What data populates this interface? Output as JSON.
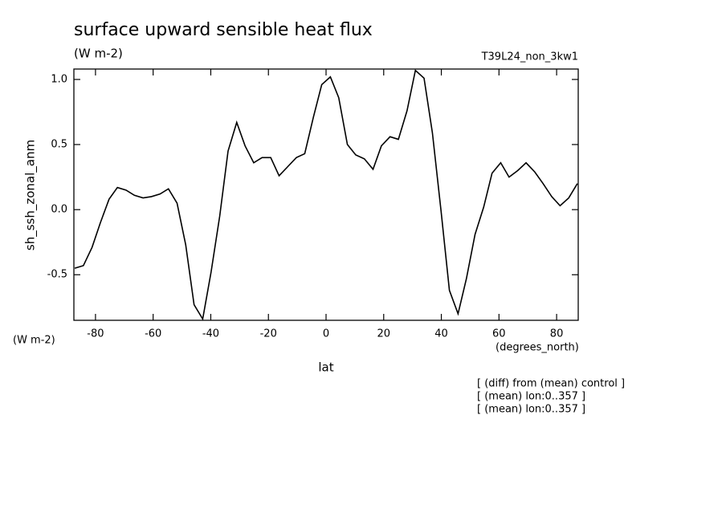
{
  "chart_data": {
    "type": "line",
    "title": "surface upward sensible heat flux",
    "subtitle": "(W m-2)",
    "experiment": "T39L24_non_3kw1",
    "y_label": "sh_ssh_zonal_anm",
    "y_units": "(W m-2)",
    "x_label": "lat",
    "x_units": "(degrees_north)",
    "notes": [
      "[ (diff) from (mean) control ]",
      "[ (mean) lon:0..357 ]",
      "[ (mean) lon:0..357 ]"
    ],
    "xlim": [
      -87.5,
      87.5
    ],
    "xticks": [
      -80,
      -60,
      -40,
      -20,
      0,
      20,
      40,
      60,
      80
    ],
    "ylim": [
      -0.85,
      1.08
    ],
    "yticks": [
      -0.5,
      {
        "value": 0,
        "label": "0.0"
      },
      0.5,
      {
        "value": 1,
        "label": "1.0"
      }
    ],
    "x": [
      -87.2,
      -84.2,
      -81.2,
      -78.3,
      -75.3,
      -72.4,
      -69.4,
      -66.5,
      -63.5,
      -60.6,
      -57.6,
      -54.7,
      -51.7,
      -48.7,
      -45.8,
      -42.8,
      -39.9,
      -36.9,
      -34.0,
      -31.0,
      -28.1,
      -25.1,
      -22.2,
      -19.2,
      -16.3,
      -13.3,
      -10.3,
      -7.4,
      -4.4,
      -1.5,
      1.5,
      4.4,
      7.4,
      10.3,
      13.3,
      16.3,
      19.2,
      22.2,
      25.1,
      28.1,
      31.0,
      34.0,
      36.9,
      39.9,
      42.8,
      45.8,
      48.7,
      51.7,
      54.7,
      57.6,
      60.6,
      63.5,
      66.5,
      69.4,
      72.4,
      75.3,
      78.3,
      81.2,
      84.2,
      87.2
    ],
    "series": [
      {
        "color": "#000000",
        "values": [
          -0.45,
          -0.43,
          -0.29,
          -0.1,
          0.08,
          0.17,
          0.15,
          0.11,
          0.09,
          0.1,
          0.12,
          0.16,
          0.05,
          -0.27,
          -0.73,
          -0.84,
          -0.48,
          -0.05,
          0.45,
          0.67,
          0.49,
          0.36,
          0.4,
          0.4,
          0.26,
          0.33,
          0.4,
          0.43,
          0.71,
          0.96,
          1.02,
          0.86,
          0.5,
          0.42,
          0.39,
          0.31,
          0.49,
          0.56,
          0.54,
          0.76,
          1.07,
          1.01,
          0.59,
          -0.01,
          -0.62,
          -0.8,
          -0.53,
          -0.19,
          0.02,
          0.28,
          0.36,
          0.25,
          0.3,
          0.36,
          0.29,
          0.2,
          0.1,
          0.03,
          0.09,
          0.2
        ]
      }
    ]
  }
}
